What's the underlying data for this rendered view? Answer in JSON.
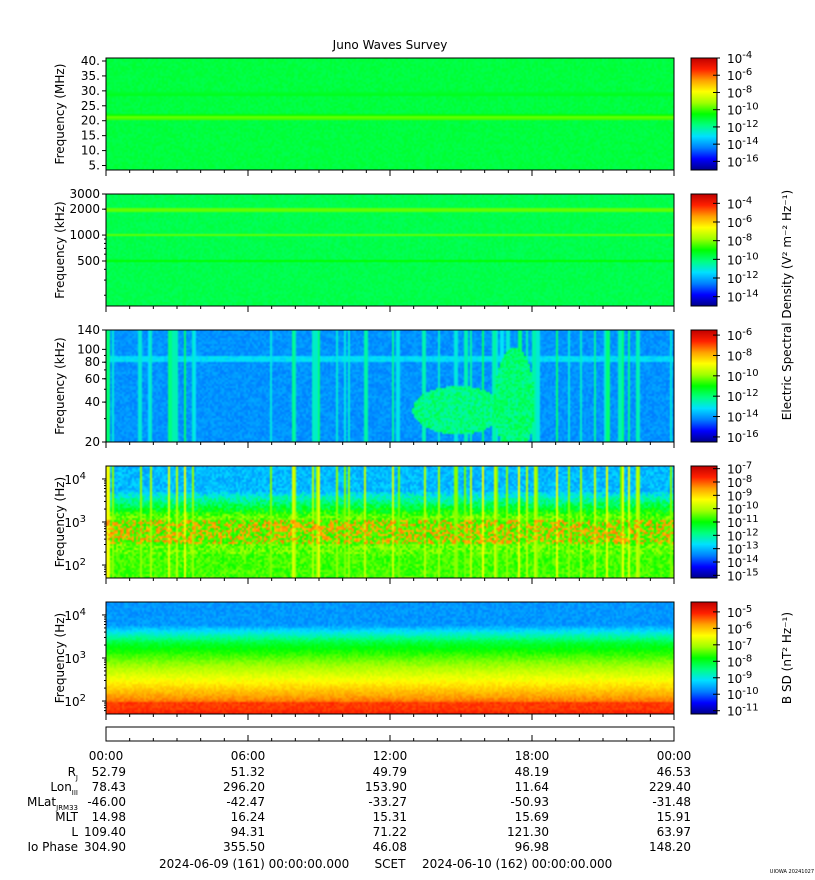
{
  "title": "Juno Waves Survey",
  "watermark": "UIOWA 20241027",
  "colors": {
    "cmap": [
      "#00008b",
      "#0000ff",
      "#0080ff",
      "#00e0ff",
      "#00ff80",
      "#00ff00",
      "#a0ff00",
      "#ffff00",
      "#ffa000",
      "#ff2000",
      "#c00000"
    ]
  },
  "chart_data": [
    {
      "type": "heatmap",
      "ylabel": "Frequency (MHz)",
      "yscale": "linear",
      "yticks": [
        "40.",
        "35.",
        "30.",
        "25.",
        "20.",
        "15.",
        "10.",
        "5."
      ],
      "ytick_values": [
        40,
        35,
        30,
        25,
        20,
        15,
        10,
        5
      ],
      "ylim": [
        3.5,
        41
      ],
      "features": [
        {
          "freq": 21,
          "level": 0.58,
          "note": "band"
        },
        {
          "freq": 29,
          "level": 0.5
        }
      ],
      "background_level": 0.45,
      "colorbar": {
        "labels": [
          {
            "text": "10",
            "exp": "-4"
          },
          {
            "text": "10",
            "exp": "-6"
          },
          {
            "text": "10",
            "exp": "-8"
          },
          {
            "text": "10",
            "exp": "-10"
          },
          {
            "text": "10",
            "exp": "-12"
          },
          {
            "text": "10",
            "exp": "-14"
          },
          {
            "text": "10",
            "exp": "-16"
          }
        ],
        "range_exp": [
          -17,
          -4
        ]
      }
    },
    {
      "type": "heatmap",
      "ylabel": "Frequency (kHz)",
      "yscale": "log",
      "yticks": [
        "3000",
        "2000",
        "1000",
        "500"
      ],
      "ytick_values": [
        3000,
        2000,
        1000,
        500
      ],
      "ylim": [
        150,
        3000
      ],
      "features": [
        {
          "freq": 2000,
          "level": 0.56
        },
        {
          "freq": 1000,
          "level": 0.56
        },
        {
          "freq": 500,
          "level": 0.5
        }
      ],
      "background_level": 0.44,
      "colorbar": {
        "labels": [
          {
            "text": "10",
            "exp": "-4"
          },
          {
            "text": "10",
            "exp": "-6"
          },
          {
            "text": "10",
            "exp": "-8"
          },
          {
            "text": "10",
            "exp": "-10"
          },
          {
            "text": "10",
            "exp": "-12"
          },
          {
            "text": "10",
            "exp": "-14"
          }
        ],
        "range_exp": [
          -15,
          -3
        ]
      }
    },
    {
      "type": "heatmap",
      "ylabel": "Frequency (kHz)",
      "yscale": "log",
      "yticks": [
        "140",
        "100",
        "80",
        "60",
        "40",
        "20"
      ],
      "ytick_values": [
        140,
        100,
        80,
        60,
        40,
        20
      ],
      "ylim": [
        20,
        140
      ],
      "features": [
        {
          "freq": 85,
          "level": 0.32
        }
      ],
      "background_level": 0.22,
      "colorbar": {
        "labels": [
          {
            "text": "10",
            "exp": "-6"
          },
          {
            "text": "10",
            "exp": "-8"
          },
          {
            "text": "10",
            "exp": "-10"
          },
          {
            "text": "10",
            "exp": "-12"
          },
          {
            "text": "10",
            "exp": "-14"
          },
          {
            "text": "10",
            "exp": "-16"
          }
        ],
        "range_exp": [
          -16.5,
          -5.5
        ]
      }
    },
    {
      "type": "heatmap",
      "ylabel": "Frequency (Hz)",
      "yscale": "log",
      "yticks": [
        {
          "text": "10",
          "exp": "4"
        },
        {
          "text": "10",
          "exp": "3"
        },
        {
          "text": "10",
          "exp": "2"
        }
      ],
      "ytick_values": [
        10000,
        1000,
        100
      ],
      "ylim": [
        50,
        20000
      ],
      "background_level": 0.45,
      "colorbar": {
        "labels": [
          {
            "text": "10",
            "exp": "-7"
          },
          {
            "text": "10",
            "exp": "-8"
          },
          {
            "text": "10",
            "exp": "-9"
          },
          {
            "text": "10",
            "exp": "-10"
          },
          {
            "text": "10",
            "exp": "-11"
          },
          {
            "text": "10",
            "exp": "-12"
          },
          {
            "text": "10",
            "exp": "-13"
          },
          {
            "text": "10",
            "exp": "-14"
          },
          {
            "text": "10",
            "exp": "-15"
          }
        ],
        "range_exp": [
          -15.2,
          -6.8
        ]
      }
    },
    {
      "type": "heatmap",
      "ylabel": "Frequency (Hz)",
      "yscale": "log",
      "yticks": [
        {
          "text": "10",
          "exp": "4"
        },
        {
          "text": "10",
          "exp": "3"
        },
        {
          "text": "10",
          "exp": "2"
        }
      ],
      "ytick_values": [
        10000,
        1000,
        100
      ],
      "ylim": [
        50,
        20000
      ],
      "background_level": 0.45,
      "colorbar": {
        "labels": [
          {
            "text": "10",
            "exp": "-5"
          },
          {
            "text": "10",
            "exp": "-6"
          },
          {
            "text": "10",
            "exp": "-7"
          },
          {
            "text": "10",
            "exp": "-8"
          },
          {
            "text": "10",
            "exp": "-9"
          },
          {
            "text": "10",
            "exp": "-10"
          },
          {
            "text": "10",
            "exp": "-11"
          }
        ],
        "range_exp": [
          -11.2,
          -4.4
        ]
      }
    }
  ],
  "colorbar_titles": {
    "electric": "Electric Spectral Density (V² m⁻² Hz⁻¹)",
    "magnetic": "B SD (nT² Hz⁻¹)"
  },
  "x_axis": {
    "tick_labels": [
      "00:00",
      "06:00",
      "12:00",
      "18:00",
      "00:00"
    ],
    "hours": [
      0,
      6,
      12,
      18,
      24
    ],
    "range_hours": [
      0,
      24
    ]
  },
  "ephemeris": [
    {
      "label": "R",
      "sub": "J",
      "values": [
        "52.79",
        "51.32",
        "49.79",
        "48.19",
        "46.53"
      ]
    },
    {
      "label": "Lon",
      "sub": "III",
      "values": [
        "78.43",
        "296.20",
        "153.90",
        "11.64",
        "229.40"
      ]
    },
    {
      "label": "MLat",
      "sub": "JRM33",
      "values": [
        "-46.00",
        "-42.47",
        "-33.27",
        "-50.93",
        "-31.48"
      ]
    },
    {
      "label": "MLT",
      "sub": "",
      "values": [
        "14.98",
        "16.24",
        "15.31",
        "15.69",
        "15.91"
      ]
    },
    {
      "label": "L",
      "sub": "",
      "values": [
        "109.40",
        "94.31",
        "71.22",
        "121.30",
        "63.97"
      ]
    },
    {
      "label": "Io Phase",
      "sub": "",
      "values": [
        "304.90",
        "355.50",
        "46.08",
        "96.98",
        "148.20"
      ]
    }
  ],
  "footer": {
    "start": "2024-06-09 (161) 00:00:00.000",
    "scet": "SCET",
    "end": "2024-06-10 (162) 00:00:00.000"
  }
}
